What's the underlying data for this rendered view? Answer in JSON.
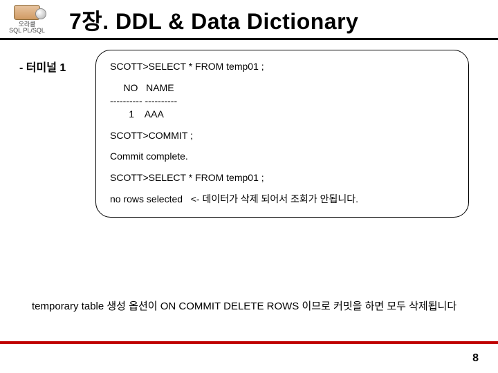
{
  "header": {
    "logo_line1": "오라클",
    "logo_line2": "SQL",
    "logo_line3": "PL/SQL",
    "title": "7장. DDL & Data Dictionary"
  },
  "terminal": {
    "label": "- 터미널 1",
    "lines": [
      "SCOTT>SELECT * FROM temp01 ;",
      "",
      "     NO   NAME",
      "---------- ----------",
      "       1    AAA",
      "",
      "SCOTT>COMMIT ;",
      "",
      "Commit complete.",
      "",
      "SCOTT>SELECT * FROM temp01 ;",
      "",
      "no rows selected   <- 데이터가 삭제 되어서 조회가 안됩니다."
    ]
  },
  "note_text": "temporary table 생성 옵션이 ON COMMIT DELETE ROWS 이므로 커밋을 하면 모두 삭제됩니다",
  "page_number": "8",
  "colors": {
    "footer_line": "#c00000",
    "header_underline": "#000000"
  }
}
